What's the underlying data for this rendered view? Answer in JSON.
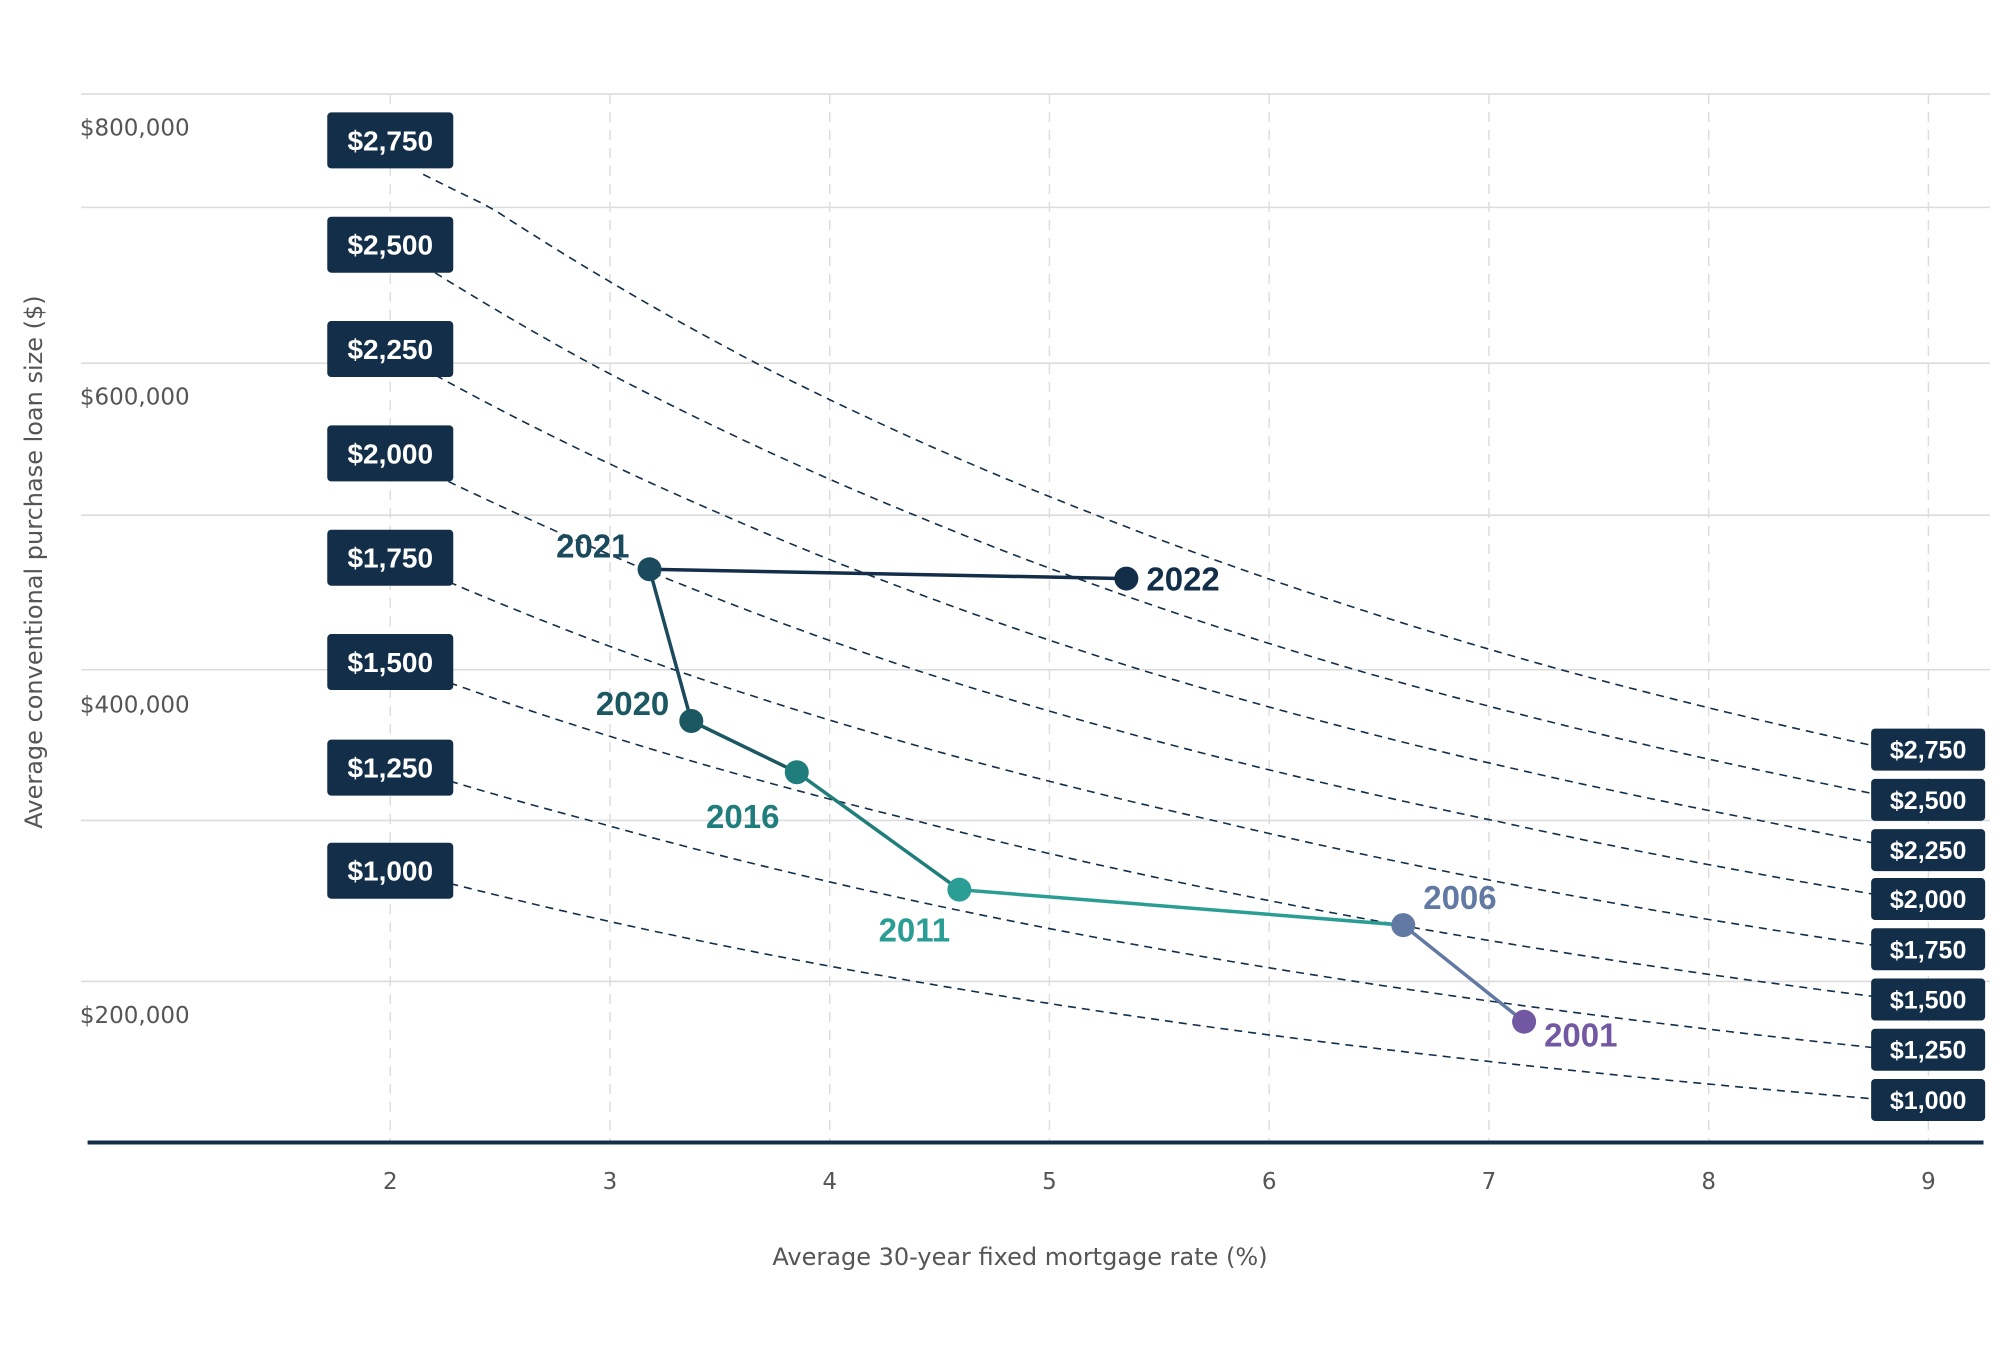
{
  "chart_data": {
    "type": "scatter",
    "xlabel": "Average 30-year fixed mortgage rate (%)",
    "ylabel": "Average conventional purchase loan size ($)",
    "x_ticks": [
      "2",
      "3",
      "4",
      "5",
      "6",
      "7",
      "8",
      "9"
    ],
    "y_ticks": [
      "$800,000",
      "$600,000",
      "$400,000",
      "$200,000"
    ],
    "y_gridlines": [
      800000,
      700000,
      600000,
      500000,
      400000,
      300000,
      200000
    ],
    "grid": true,
    "series": [
      {
        "points": [
          {
            "label": "2001",
            "x": 7.16,
            "y": 175000,
            "color": "#7258a3"
          },
          {
            "label": "2006",
            "x": 6.61,
            "y": 235000,
            "color": "#6279a3"
          },
          {
            "label": "2011",
            "x": 4.59,
            "y": 257000,
            "color": "#2a9d94"
          },
          {
            "label": "2016",
            "x": 3.85,
            "y": 332000,
            "color": "#1f7d7b"
          },
          {
            "label": "2020",
            "x": 3.37,
            "y": 366000,
            "color": "#1b5862"
          },
          {
            "label": "2021",
            "x": 3.18,
            "y": 465000,
            "color": "#1a4a5c"
          },
          {
            "label": "2022",
            "x": 5.35,
            "y": 459000,
            "color": "#132e48"
          }
        ]
      }
    ],
    "payment_curves": {
      "term_months": 360,
      "payments": [
        2750,
        2500,
        2250,
        2000,
        1750,
        1500,
        1250,
        1000
      ],
      "labels": [
        "$2,750",
        "$2,500",
        "$2,250",
        "$2,000",
        "$1,750",
        "$1,500",
        "$1,250",
        "$1,000"
      ],
      "style": "dashed",
      "label_color": "#132e48"
    },
    "axis_color": "#132e48"
  }
}
